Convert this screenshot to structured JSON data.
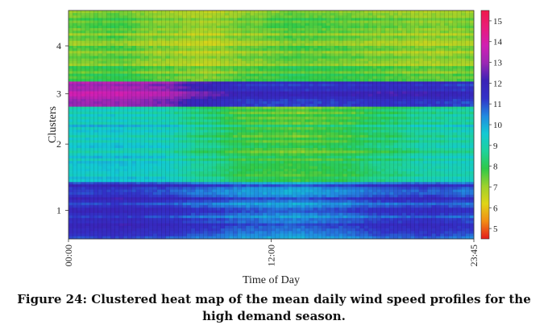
{
  "chart_data": {
    "type": "heatmap",
    "xlabel": "Time of Day",
    "ylabel": "Clusters",
    "x_ticks": [
      "00:00",
      "12:00",
      "23:45"
    ],
    "y_ticks": [
      "1",
      "2",
      "3",
      "4"
    ],
    "x_range": [
      "00:00",
      "23:45"
    ],
    "colorbar": {
      "ticks": [
        5,
        6,
        7,
        8,
        9,
        10,
        11,
        12,
        13,
        14,
        15
      ],
      "range": [
        4.5,
        15.5
      ],
      "colors": [
        "#e41b1b",
        "#f28c14",
        "#e0d417",
        "#9dd12c",
        "#2ec949",
        "#1ed29c",
        "#12c9d4",
        "#218ae0",
        "#3232c8",
        "#3a22b6",
        "#9a28b4",
        "#d01fb3",
        "#e81c7c",
        "#f01a4a"
      ]
    },
    "clusters": [
      {
        "label": "1",
        "share": 0.25,
        "profile": [
          11.5,
          11.6,
          11.4,
          11.0,
          10.6,
          10.4,
          10.7,
          11.1,
          11.3,
          11.0
        ]
      },
      {
        "label": "2",
        "share": 0.33,
        "profile": [
          9.4,
          9.5,
          9.3,
          8.6,
          7.9,
          7.7,
          7.9,
          8.4,
          8.9,
          9.1
        ]
      },
      {
        "label": "3",
        "share": 0.11,
        "profile": [
          13.3,
          13.3,
          13.0,
          12.1,
          11.5,
          11.4,
          11.5,
          11.7,
          11.6,
          11.3
        ]
      },
      {
        "label": "4",
        "share": 0.31,
        "profile": [
          7.4,
          7.6,
          7.2,
          6.9,
          7.3,
          7.6,
          7.5,
          7.3,
          7.1,
          7.2
        ]
      }
    ]
  },
  "caption": {
    "line1": "Figure 24: Clustered heat map of the mean daily wind speed profiles for the",
    "line2": "high demand season."
  }
}
